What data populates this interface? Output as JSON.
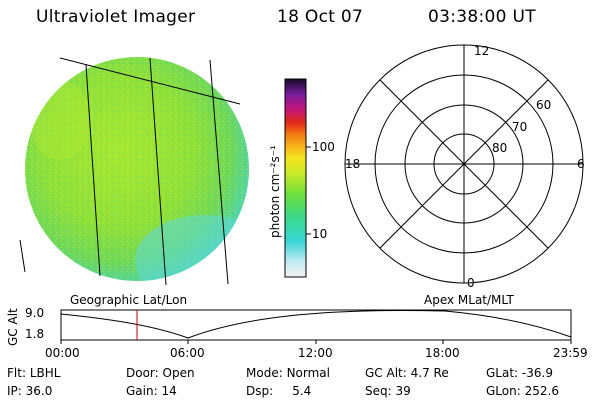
{
  "header": {
    "instrument": "Ultraviolet Imager",
    "date": "18 Oct 07",
    "time": "03:38:00 UT"
  },
  "colorbar": {
    "unit_label": "photon cm⁻²s⁻¹",
    "ticks": [
      "100",
      "10"
    ]
  },
  "image_panel": {
    "caption": "Geographic Lat/Lon"
  },
  "polar_plot": {
    "caption": "Apex MLat/MLT",
    "mlt_labels": [
      "12",
      "18",
      "6",
      "0"
    ],
    "lat_labels": [
      "60",
      "70",
      "80"
    ]
  },
  "altitude_strip": {
    "ylabel": "GC Alt",
    "yticks": [
      "9.0",
      "1.8"
    ],
    "xticks": [
      "00:00",
      "06:00",
      "12:00",
      "18:00",
      "23:59"
    ]
  },
  "status": {
    "row1": [
      {
        "key": "Flt:",
        "value": "LBHL"
      },
      {
        "key": "Door:",
        "value": "Open"
      },
      {
        "key": "Mode:",
        "value": "Normal"
      },
      {
        "key": "GC Alt:",
        "value": "4.7 Re"
      },
      {
        "key": "GLat:",
        "value": "-36.9"
      }
    ],
    "row2": [
      {
        "key": "IP:",
        "value": "36.0"
      },
      {
        "key": "Gain:",
        "value": "14"
      },
      {
        "key": "Dsp:",
        "value": "5.4"
      },
      {
        "key": "Seq:",
        "value": "39"
      },
      {
        "key": "GLon:",
        "value": "252.6"
      }
    ]
  },
  "colors": {
    "disk_fill": "#8fe03a",
    "disk_edge": "#3fd6c8",
    "marker": "#cc0000"
  }
}
